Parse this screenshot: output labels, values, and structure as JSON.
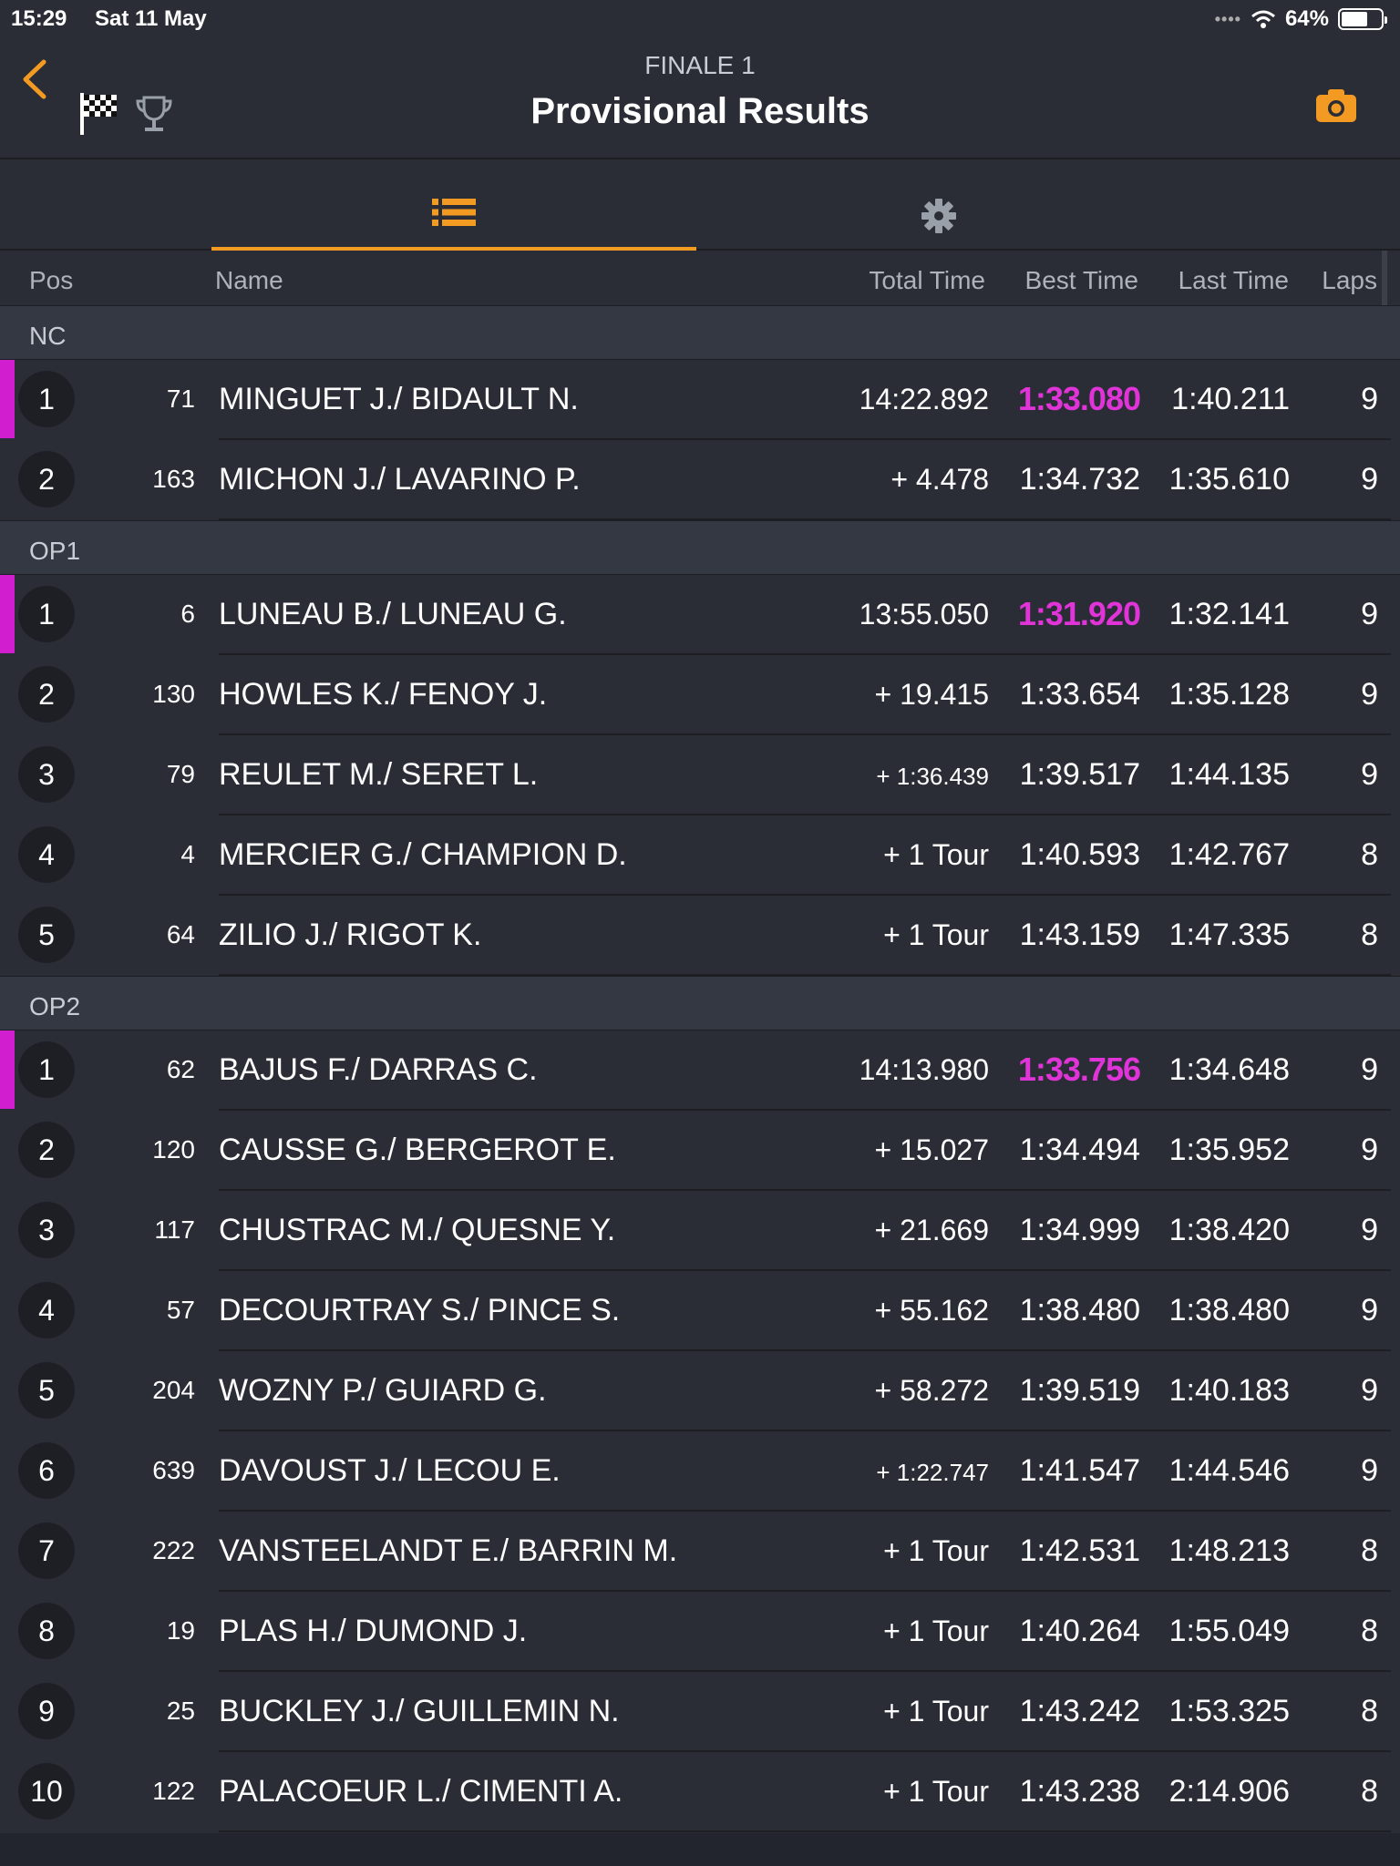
{
  "status": {
    "time": "15:29",
    "date": "Sat 11 May",
    "battery": "64%"
  },
  "nav": {
    "subtitle": "FINALE 1",
    "title": "Provisional Results"
  },
  "columns": {
    "pos": "Pos",
    "name": "Name",
    "total": "Total Time",
    "best": "Best Time",
    "last": "Last Time",
    "laps": "Laps"
  },
  "colors": {
    "accent": "#f39a23",
    "fastest": "#e033d8",
    "background": "#2a2d36"
  },
  "icons": [
    "back-icon",
    "checkered-flag-icon",
    "trophy-icon",
    "camera-icon",
    "list-icon",
    "gear-icon",
    "wifi-icon",
    "battery-icon"
  ],
  "sections": [
    {
      "label": "NC"
    },
    {
      "label": "OP1"
    },
    {
      "label": "OP2"
    }
  ],
  "rows": [
    {
      "pos": "1",
      "num": "71",
      "name": "MINGUET J./ BIDAULT N.",
      "total": "14:22.892",
      "best": "1:33.080",
      "last": "1:40.211",
      "laps": "9"
    },
    {
      "pos": "2",
      "num": "163",
      "name": "MICHON J./ LAVARINO P.",
      "total": "+ 4.478",
      "best": "1:34.732",
      "last": "1:35.610",
      "laps": "9"
    },
    {
      "pos": "1",
      "num": "6",
      "name": "LUNEAU B./ LUNEAU G.",
      "total": "13:55.050",
      "best": "1:31.920",
      "last": "1:32.141",
      "laps": "9"
    },
    {
      "pos": "2",
      "num": "130",
      "name": "HOWLES K./ FENOY J.",
      "total": "+ 19.415",
      "best": "1:33.654",
      "last": "1:35.128",
      "laps": "9"
    },
    {
      "pos": "3",
      "num": "79",
      "name": "REULET M./ SERET L.",
      "total": "+ 1:36.439",
      "best": "1:39.517",
      "last": "1:44.135",
      "laps": "9"
    },
    {
      "pos": "4",
      "num": "4",
      "name": "MERCIER G./ CHAMPION D.",
      "total": "+ 1 Tour",
      "best": "1:40.593",
      "last": "1:42.767",
      "laps": "8"
    },
    {
      "pos": "5",
      "num": "64",
      "name": "ZILIO J./ RIGOT K.",
      "total": "+ 1 Tour",
      "best": "1:43.159",
      "last": "1:47.335",
      "laps": "8"
    },
    {
      "pos": "1",
      "num": "62",
      "name": "BAJUS F./ DARRAS C.",
      "total": "14:13.980",
      "best": "1:33.756",
      "last": "1:34.648",
      "laps": "9"
    },
    {
      "pos": "2",
      "num": "120",
      "name": "CAUSSE G./ BERGEROT E.",
      "total": "+ 15.027",
      "best": "1:34.494",
      "last": "1:35.952",
      "laps": "9"
    },
    {
      "pos": "3",
      "num": "117",
      "name": "CHUSTRAC M./ QUESNE Y.",
      "total": "+ 21.669",
      "best": "1:34.999",
      "last": "1:38.420",
      "laps": "9"
    },
    {
      "pos": "4",
      "num": "57",
      "name": "DECOURTRAY S./ PINCE S.",
      "total": "+ 55.162",
      "best": "1:38.480",
      "last": "1:38.480",
      "laps": "9"
    },
    {
      "pos": "5",
      "num": "204",
      "name": "WOZNY P./ GUIARD G.",
      "total": "+ 58.272",
      "best": "1:39.519",
      "last": "1:40.183",
      "laps": "9"
    },
    {
      "pos": "6",
      "num": "639",
      "name": "DAVOUST J./ LECOU E.",
      "total": "+ 1:22.747",
      "best": "1:41.547",
      "last": "1:44.546",
      "laps": "9"
    },
    {
      "pos": "7",
      "num": "222",
      "name": "VANSTEELANDT E./ BARRIN M.",
      "total": "+ 1 Tour",
      "best": "1:42.531",
      "last": "1:48.213",
      "laps": "8"
    },
    {
      "pos": "8",
      "num": "19",
      "name": "PLAS H./ DUMOND J.",
      "total": "+ 1 Tour",
      "best": "1:40.264",
      "last": "1:55.049",
      "laps": "8"
    },
    {
      "pos": "9",
      "num": "25",
      "name": "BUCKLEY J./ GUILLEMIN N.",
      "total": "+ 1 Tour",
      "best": "1:43.242",
      "last": "1:53.325",
      "laps": "8"
    },
    {
      "pos": "10",
      "num": "122",
      "name": "PALACOEUR L./ CIMENTI A.",
      "total": "+ 1 Tour",
      "best": "1:43.238",
      "last": "2:14.906",
      "laps": "8"
    }
  ]
}
